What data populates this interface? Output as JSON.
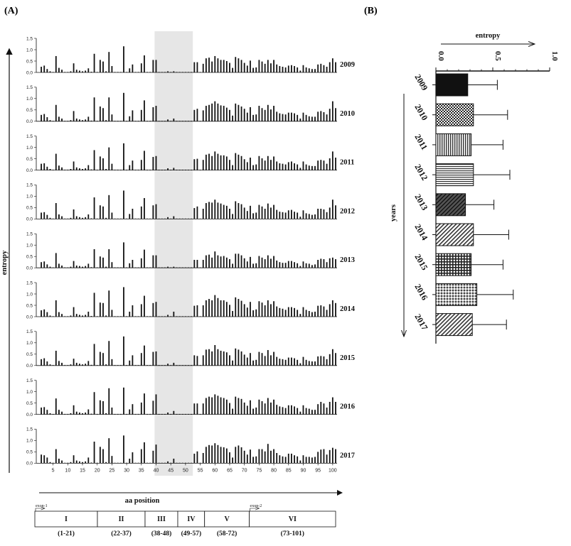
{
  "figure": {
    "panel_a_label": "(A)",
    "panel_b_label": "(B)"
  },
  "chart_data": [
    {
      "type": "bar",
      "panel": "A",
      "ylabel": "entropy",
      "xlabel": "aa position",
      "ylim": [
        0,
        1.5
      ],
      "yticks": [
        "1.5",
        "1.0",
        "0.5",
        "0.0"
      ],
      "xticks": [
        "5",
        "10",
        "15",
        "20",
        "25",
        "30",
        "35",
        "40",
        "45",
        "50",
        "55",
        "60",
        "65",
        "70",
        "75",
        "80",
        "85",
        "90",
        "95",
        "100"
      ],
      "positions_count": 101,
      "highlight_region": [
        40,
        52
      ],
      "series": [
        {
          "name": "2009",
          "values": [
            0.25,
            0.3,
            0.15,
            0.05,
            0.02,
            0.72,
            0.2,
            0.12,
            0.02,
            0.02,
            0.05,
            0.4,
            0.12,
            0.08,
            0.05,
            0.08,
            0.18,
            0.03,
            0.82,
            0.02,
            0.55,
            0.48,
            0.05,
            0.9,
            0.28,
            0.02,
            0.02,
            0.02,
            1.15,
            0.02,
            0.18,
            0.35,
            0.02,
            0.02,
            0.4,
            0.75,
            0.02,
            0.02,
            0.55,
            0.55,
            0.02,
            0.02,
            0.02,
            0.05,
            0.02,
            0.05,
            0.02,
            0.02,
            0.02,
            0.02,
            0.02,
            0.02,
            0.45,
            0.45,
            0.02,
            0.38,
            0.62,
            0.65,
            0.48,
            0.72,
            0.62,
            0.55,
            0.55,
            0.5,
            0.42,
            0.2,
            0.68,
            0.62,
            0.55,
            0.42,
            0.3,
            0.52,
            0.2,
            0.22,
            0.55,
            0.48,
            0.38,
            0.55,
            0.4,
            0.55,
            0.35,
            0.28,
            0.25,
            0.22,
            0.3,
            0.32,
            0.28,
            0.22,
            0.08,
            0.32,
            0.22,
            0.18,
            0.15,
            0.15,
            0.35,
            0.38,
            0.32,
            0.25,
            0.45,
            0.62,
            0.45
          ]
        },
        {
          "name": "2010",
          "values": [
            0.28,
            0.32,
            0.18,
            0.05,
            0.02,
            0.72,
            0.2,
            0.12,
            0.02,
            0.02,
            0.05,
            0.45,
            0.12,
            0.08,
            0.05,
            0.08,
            0.2,
            0.03,
            1.05,
            0.02,
            0.65,
            0.58,
            0.05,
            1.05,
            0.3,
            0.02,
            0.02,
            0.02,
            1.25,
            0.02,
            0.22,
            0.48,
            0.02,
            0.02,
            0.5,
            0.92,
            0.02,
            0.02,
            0.62,
            0.68,
            0.02,
            0.02,
            0.02,
            0.08,
            0.02,
            0.12,
            0.02,
            0.02,
            0.02,
            0.02,
            0.02,
            0.02,
            0.5,
            0.55,
            0.02,
            0.48,
            0.68,
            0.72,
            0.78,
            0.88,
            0.78,
            0.7,
            0.68,
            0.6,
            0.5,
            0.25,
            0.78,
            0.72,
            0.65,
            0.55,
            0.38,
            0.62,
            0.28,
            0.3,
            0.68,
            0.58,
            0.5,
            0.72,
            0.52,
            0.68,
            0.42,
            0.35,
            0.32,
            0.3,
            0.38,
            0.38,
            0.35,
            0.28,
            0.12,
            0.38,
            0.28,
            0.22,
            0.2,
            0.2,
            0.42,
            0.45,
            0.4,
            0.3,
            0.55,
            0.88,
            0.58
          ]
        },
        {
          "name": "2011",
          "values": [
            0.28,
            0.3,
            0.15,
            0.05,
            0.02,
            0.72,
            0.2,
            0.12,
            0.02,
            0.02,
            0.05,
            0.38,
            0.12,
            0.08,
            0.05,
            0.08,
            0.22,
            0.03,
            0.88,
            0.02,
            0.6,
            0.52,
            0.05,
            1.0,
            0.28,
            0.02,
            0.02,
            0.02,
            1.18,
            0.02,
            0.22,
            0.42,
            0.02,
            0.02,
            0.45,
            0.85,
            0.02,
            0.02,
            0.58,
            0.62,
            0.02,
            0.02,
            0.02,
            0.08,
            0.02,
            0.1,
            0.02,
            0.02,
            0.02,
            0.02,
            0.02,
            0.02,
            0.48,
            0.5,
            0.02,
            0.45,
            0.68,
            0.72,
            0.62,
            0.82,
            0.72,
            0.65,
            0.65,
            0.6,
            0.45,
            0.22,
            0.75,
            0.68,
            0.62,
            0.48,
            0.35,
            0.55,
            0.22,
            0.25,
            0.62,
            0.52,
            0.42,
            0.62,
            0.45,
            0.6,
            0.38,
            0.3,
            0.28,
            0.25,
            0.35,
            0.38,
            0.3,
            0.25,
            0.1,
            0.38,
            0.25,
            0.2,
            0.18,
            0.18,
            0.42,
            0.45,
            0.42,
            0.28,
            0.52,
            0.82,
            0.55
          ]
        },
        {
          "name": "2012",
          "values": [
            0.28,
            0.3,
            0.18,
            0.05,
            0.02,
            0.7,
            0.2,
            0.12,
            0.02,
            0.02,
            0.05,
            0.42,
            0.12,
            0.08,
            0.05,
            0.08,
            0.2,
            0.03,
            0.95,
            0.02,
            0.6,
            0.55,
            0.05,
            1.05,
            0.28,
            0.02,
            0.02,
            0.02,
            1.25,
            0.02,
            0.22,
            0.45,
            0.02,
            0.02,
            0.55,
            0.92,
            0.02,
            0.02,
            0.6,
            0.65,
            0.02,
            0.02,
            0.02,
            0.08,
            0.02,
            0.12,
            0.02,
            0.02,
            0.02,
            0.02,
            0.02,
            0.02,
            0.48,
            0.55,
            0.02,
            0.45,
            0.7,
            0.75,
            0.72,
            0.85,
            0.72,
            0.68,
            0.62,
            0.58,
            0.45,
            0.22,
            0.78,
            0.7,
            0.65,
            0.5,
            0.35,
            0.58,
            0.25,
            0.28,
            0.62,
            0.55,
            0.45,
            0.68,
            0.5,
            0.62,
            0.4,
            0.32,
            0.3,
            0.28,
            0.38,
            0.4,
            0.32,
            0.28,
            0.1,
            0.38,
            0.25,
            0.22,
            0.18,
            0.2,
            0.45,
            0.45,
            0.42,
            0.3,
            0.5,
            0.85,
            0.6
          ]
        },
        {
          "name": "2013",
          "values": [
            0.25,
            0.28,
            0.15,
            0.05,
            0.02,
            0.65,
            0.18,
            0.1,
            0.02,
            0.02,
            0.05,
            0.3,
            0.1,
            0.08,
            0.05,
            0.08,
            0.18,
            0.03,
            0.82,
            0.02,
            0.5,
            0.45,
            0.05,
            0.82,
            0.25,
            0.02,
            0.02,
            0.02,
            1.12,
            0.02,
            0.2,
            0.35,
            0.02,
            0.02,
            0.42,
            0.8,
            0.02,
            0.02,
            0.55,
            0.55,
            0.02,
            0.02,
            0.02,
            0.05,
            0.02,
            0.05,
            0.02,
            0.02,
            0.02,
            0.02,
            0.02,
            0.02,
            0.35,
            0.35,
            0.02,
            0.35,
            0.55,
            0.58,
            0.45,
            0.72,
            0.55,
            0.5,
            0.52,
            0.45,
            0.38,
            0.18,
            0.62,
            0.62,
            0.55,
            0.42,
            0.28,
            0.48,
            0.18,
            0.2,
            0.52,
            0.45,
            0.38,
            0.55,
            0.4,
            0.52,
            0.32,
            0.25,
            0.22,
            0.22,
            0.3,
            0.3,
            0.25,
            0.2,
            0.08,
            0.28,
            0.2,
            0.18,
            0.12,
            0.15,
            0.35,
            0.4,
            0.38,
            0.25,
            0.42,
            0.45,
            0.38
          ]
        },
        {
          "name": "2014",
          "values": [
            0.28,
            0.32,
            0.2,
            0.05,
            0.02,
            0.72,
            0.2,
            0.12,
            0.02,
            0.02,
            0.05,
            0.42,
            0.12,
            0.08,
            0.05,
            0.08,
            0.22,
            0.03,
            1.05,
            0.02,
            0.62,
            0.6,
            0.05,
            1.15,
            0.3,
            0.02,
            0.02,
            0.02,
            1.3,
            0.02,
            0.22,
            0.5,
            0.02,
            0.02,
            0.55,
            0.92,
            0.02,
            0.02,
            0.6,
            0.65,
            0.02,
            0.02,
            0.02,
            0.08,
            0.02,
            0.22,
            0.02,
            0.02,
            0.02,
            0.02,
            0.02,
            0.02,
            0.48,
            0.5,
            0.02,
            0.5,
            0.72,
            0.78,
            0.72,
            0.95,
            0.82,
            0.72,
            0.72,
            0.65,
            0.52,
            0.25,
            0.85,
            0.78,
            0.7,
            0.55,
            0.4,
            0.65,
            0.28,
            0.32,
            0.68,
            0.62,
            0.5,
            0.72,
            0.55,
            0.68,
            0.45,
            0.38,
            0.35,
            0.3,
            0.42,
            0.42,
            0.38,
            0.3,
            0.12,
            0.42,
            0.3,
            0.25,
            0.2,
            0.22,
            0.48,
            0.5,
            0.45,
            0.3,
            0.55,
            0.72,
            0.6
          ]
        },
        {
          "name": "2015",
          "values": [
            0.28,
            0.32,
            0.18,
            0.05,
            0.02,
            0.65,
            0.2,
            0.12,
            0.02,
            0.02,
            0.05,
            0.3,
            0.12,
            0.08,
            0.05,
            0.08,
            0.2,
            0.03,
            0.95,
            0.02,
            0.6,
            0.55,
            0.05,
            1.08,
            0.28,
            0.02,
            0.02,
            0.02,
            1.28,
            0.02,
            0.22,
            0.45,
            0.02,
            0.02,
            0.55,
            0.88,
            0.02,
            0.02,
            0.6,
            0.62,
            0.02,
            0.02,
            0.02,
            0.08,
            0.02,
            0.12,
            0.02,
            0.02,
            0.02,
            0.02,
            0.02,
            0.02,
            0.45,
            0.42,
            0.02,
            0.45,
            0.7,
            0.72,
            0.62,
            0.9,
            0.72,
            0.65,
            0.62,
            0.58,
            0.45,
            0.22,
            0.75,
            0.7,
            0.62,
            0.48,
            0.35,
            0.55,
            0.22,
            0.25,
            0.6,
            0.55,
            0.42,
            0.68,
            0.45,
            0.6,
            0.38,
            0.3,
            0.28,
            0.25,
            0.35,
            0.35,
            0.32,
            0.25,
            0.1,
            0.38,
            0.25,
            0.2,
            0.18,
            0.18,
            0.4,
            0.42,
            0.4,
            0.28,
            0.5,
            0.72,
            0.55
          ]
        },
        {
          "name": "2016",
          "values": [
            0.3,
            0.32,
            0.2,
            0.05,
            0.02,
            0.7,
            0.2,
            0.12,
            0.02,
            0.02,
            0.05,
            0.4,
            0.12,
            0.08,
            0.05,
            0.08,
            0.22,
            0.03,
            0.98,
            0.02,
            0.62,
            0.58,
            0.05,
            1.15,
            0.3,
            0.02,
            0.02,
            0.02,
            1.18,
            0.02,
            0.22,
            0.45,
            0.02,
            0.02,
            0.52,
            0.92,
            0.02,
            0.02,
            0.6,
            0.88,
            0.02,
            0.02,
            0.02,
            0.08,
            0.02,
            0.15,
            0.02,
            0.02,
            0.02,
            0.02,
            0.02,
            0.02,
            0.48,
            0.48,
            0.02,
            0.48,
            0.72,
            0.78,
            0.75,
            0.88,
            0.82,
            0.75,
            0.72,
            0.65,
            0.5,
            0.25,
            0.78,
            0.72,
            0.68,
            0.52,
            0.38,
            0.62,
            0.25,
            0.3,
            0.65,
            0.58,
            0.48,
            0.72,
            0.52,
            0.65,
            0.42,
            0.35,
            0.32,
            0.28,
            0.4,
            0.4,
            0.35,
            0.28,
            0.12,
            0.4,
            0.28,
            0.25,
            0.2,
            0.2,
            0.45,
            0.55,
            0.48,
            0.3,
            0.55,
            0.75,
            0.55
          ]
        },
        {
          "name": "2017",
          "values": [
            0.38,
            0.35,
            0.25,
            0.05,
            0.02,
            0.62,
            0.2,
            0.12,
            0.02,
            0.02,
            0.05,
            0.35,
            0.12,
            0.08,
            0.05,
            0.08,
            0.25,
            0.03,
            0.95,
            0.02,
            0.72,
            0.62,
            0.05,
            1.1,
            0.32,
            0.02,
            0.02,
            0.02,
            1.22,
            0.02,
            0.2,
            0.48,
            0.02,
            0.02,
            0.62,
            0.92,
            0.02,
            0.02,
            0.55,
            0.82,
            0.02,
            0.02,
            0.02,
            0.08,
            0.02,
            0.2,
            0.02,
            0.02,
            0.02,
            0.02,
            0.02,
            0.02,
            0.42,
            0.52,
            0.02,
            0.45,
            0.72,
            0.8,
            0.78,
            0.88,
            0.8,
            0.72,
            0.7,
            0.65,
            0.48,
            0.25,
            0.72,
            0.78,
            0.7,
            0.55,
            0.38,
            0.6,
            0.28,
            0.3,
            0.62,
            0.62,
            0.52,
            0.85,
            0.55,
            0.62,
            0.45,
            0.35,
            0.3,
            0.28,
            0.42,
            0.42,
            0.35,
            0.3,
            0.12,
            0.35,
            0.28,
            0.28,
            0.25,
            0.28,
            0.5,
            0.6,
            0.62,
            0.38,
            0.58,
            0.68,
            0.62
          ]
        }
      ],
      "regions": [
        {
          "label": "I",
          "range": "(1-21)",
          "exon": "exon-1",
          "start": 1,
          "end": 21
        },
        {
          "label": "II",
          "range": "(22-37)",
          "exon": "",
          "start": 22,
          "end": 37
        },
        {
          "label": "III",
          "range": "(38-48)",
          "exon": "",
          "start": 38,
          "end": 48
        },
        {
          "label": "IV",
          "range": "(49-57)",
          "exon": "",
          "start": 49,
          "end": 57
        },
        {
          "label": "V",
          "range": "(58-72)",
          "exon": "",
          "start": 58,
          "end": 72
        },
        {
          "label": "VI",
          "range": "(73-101)",
          "exon": "exon-2",
          "start": 73,
          "end": 101
        }
      ]
    },
    {
      "type": "bar",
      "panel": "B",
      "xlabel": "entropy",
      "ylabel": "years",
      "xlim": [
        0,
        1.0
      ],
      "xticks": [
        "0.0",
        "0.5",
        "1.0"
      ],
      "categories": [
        "2009",
        "2010",
        "2011",
        "2012",
        "2013",
        "2014",
        "2015",
        "2016",
        "2017"
      ],
      "values": [
        0.28,
        0.33,
        0.31,
        0.33,
        0.26,
        0.33,
        0.31,
        0.36,
        0.32
      ],
      "errors": [
        0.26,
        0.3,
        0.28,
        0.32,
        0.25,
        0.31,
        0.28,
        0.32,
        0.3
      ],
      "patterns": [
        "solid-black",
        "checker",
        "vertical-lines",
        "horizontal-lines",
        "dark-diagonal",
        "diagonal-lines",
        "grid",
        "dotted-checker",
        "diagonal-lines"
      ]
    }
  ]
}
